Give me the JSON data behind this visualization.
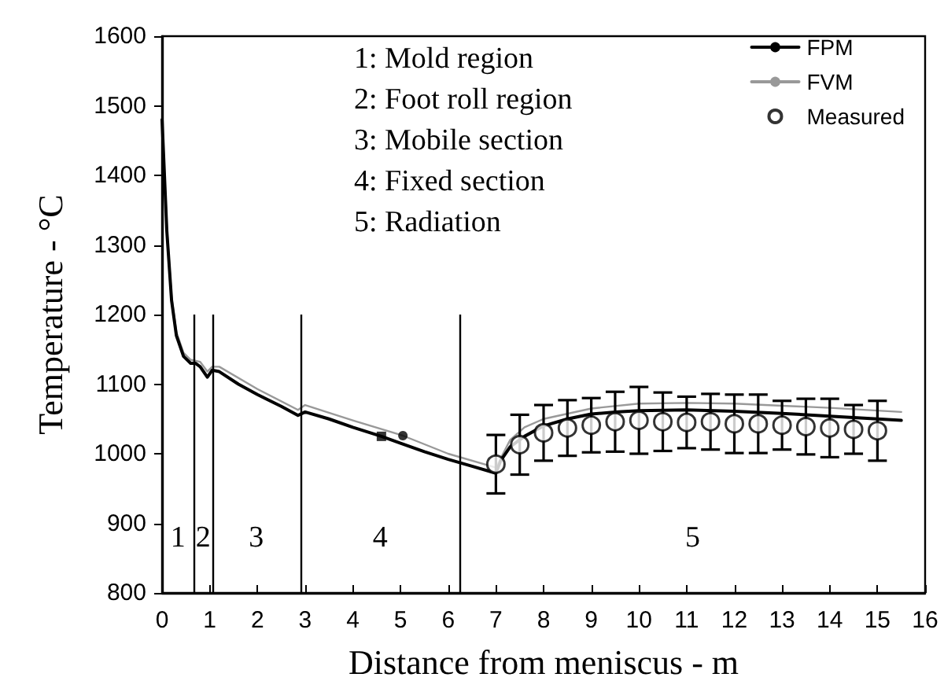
{
  "chart_data": {
    "type": "line",
    "xlabel": "Distance from meniscus - m",
    "ylabel": "Temperature - °C",
    "xlim": [
      0,
      16
    ],
    "xticks": [
      0,
      1,
      2,
      3,
      4,
      5,
      6,
      7,
      8,
      9,
      10,
      11,
      12,
      13,
      14,
      15,
      16
    ],
    "ylim": [
      800,
      1600
    ],
    "yticks": [
      800,
      900,
      1000,
      1100,
      1200,
      1300,
      1400,
      1500,
      1600
    ],
    "grid": false,
    "legend": "top right",
    "series": [
      {
        "name": "FPM",
        "type": "line",
        "color": "#000000",
        "marker": "none",
        "x": [
          0,
          0.05,
          0.1,
          0.2,
          0.3,
          0.45,
          0.6,
          0.7,
          0.8,
          0.95,
          1.05,
          1.2,
          1.6,
          2.0,
          2.5,
          2.85,
          3.0,
          3.5,
          4,
          4.6,
          5,
          5.5,
          6,
          6.5,
          7,
          7.1,
          7.3,
          7.6,
          8,
          8.5,
          9,
          9.5,
          10,
          11,
          12,
          13,
          14,
          15,
          15.5
        ],
        "values": [
          1480,
          1400,
          1320,
          1220,
          1170,
          1140,
          1130,
          1130,
          1125,
          1110,
          1120,
          1118,
          1100,
          1085,
          1068,
          1055,
          1060,
          1050,
          1038,
          1025,
          1015,
          1003,
          992,
          982,
          972,
          990,
          1010,
          1025,
          1040,
          1050,
          1057,
          1060,
          1062,
          1063,
          1061,
          1058,
          1054,
          1050,
          1048
        ]
      },
      {
        "name": "FVM",
        "type": "line",
        "color": "#999999",
        "marker": "none",
        "x": [
          0,
          0.05,
          0.1,
          0.2,
          0.3,
          0.45,
          0.6,
          0.8,
          0.95,
          1.05,
          1.2,
          2,
          2.85,
          3,
          4,
          5.05,
          6,
          7,
          7.3,
          7.6,
          8,
          9,
          10,
          11,
          12,
          13,
          14,
          15,
          15.5
        ],
        "values": [
          1480,
          1405,
          1325,
          1225,
          1175,
          1145,
          1135,
          1132,
          1118,
          1125,
          1125,
          1093,
          1063,
          1070,
          1048,
          1026,
          1000,
          980,
          1020,
          1038,
          1050,
          1065,
          1072,
          1073,
          1072,
          1069,
          1066,
          1062,
          1060
        ]
      },
      {
        "name": "Measured",
        "type": "scatter",
        "color": "#000000",
        "marker": "circle",
        "x": [
          7,
          7.5,
          8,
          8.5,
          9,
          9.5,
          10,
          10.5,
          11,
          11.5,
          12,
          12.5,
          13,
          13.5,
          14,
          14.5,
          15
        ],
        "values": [
          985,
          1013,
          1030,
          1037,
          1041,
          1046,
          1048,
          1046,
          1045,
          1046,
          1043,
          1043,
          1041,
          1039,
          1037,
          1035,
          1033
        ],
        "errors": [
          42,
          43,
          40,
          40,
          39,
          43,
          48,
          42,
          37,
          40,
          42,
          42,
          35,
          40,
          42,
          35,
          43
        ]
      },
      {
        "type": "scatter",
        "color": "#000000",
        "marker": "square",
        "x": [
          4.6
        ],
        "values": [
          1025
        ]
      },
      {
        "type": "scatter",
        "color": "#000000",
        "marker": "circle",
        "x": [
          5.05
        ],
        "values": [
          1026
        ]
      }
    ],
    "ref_lines": [
      {
        "axis": "x",
        "value": 0.67,
        "color": "#000000"
      },
      {
        "axis": "x",
        "value": 1.05,
        "color": "#000000"
      },
      {
        "axis": "x",
        "value": 2.9,
        "color": "#000000"
      },
      {
        "axis": "x",
        "value": 6.25,
        "color": "#000000"
      }
    ],
    "annotations": [
      "1: Mold region",
      "2: Foot roll region",
      "3: Mobile section",
      "4: Fixed section",
      "5: Radiation",
      "1",
      "2",
      "3",
      "4",
      "5"
    ]
  }
}
